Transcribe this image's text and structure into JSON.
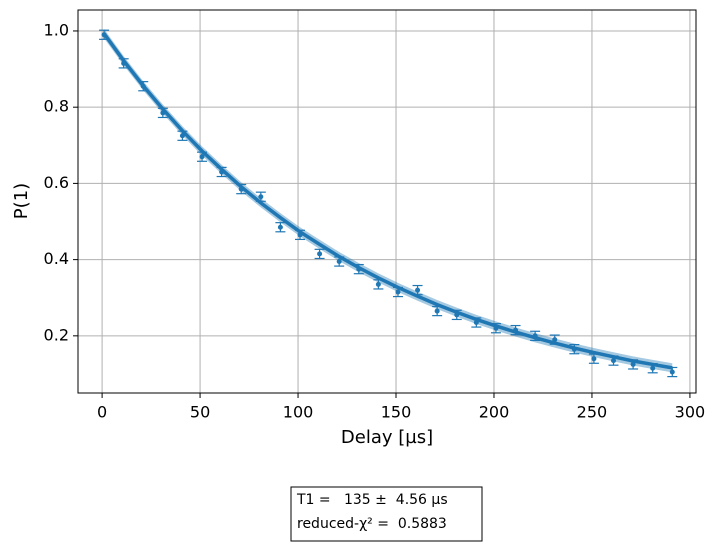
{
  "chart_data": {
    "type": "scatter",
    "xlabel": "Delay [µs]",
    "ylabel": "P(1)",
    "x": [
      1,
      11,
      21,
      31,
      41,
      51,
      61,
      71,
      81,
      91,
      101,
      111,
      121,
      131,
      141,
      151,
      161,
      171,
      181,
      191,
      201,
      211,
      221,
      231,
      241,
      251,
      261,
      271,
      281,
      291
    ],
    "values": [
      0.99,
      0.915,
      0.855,
      0.785,
      0.725,
      0.67,
      0.63,
      0.585,
      0.565,
      0.485,
      0.465,
      0.415,
      0.395,
      0.375,
      0.335,
      0.315,
      0.32,
      0.265,
      0.255,
      0.235,
      0.22,
      0.215,
      0.2,
      0.19,
      0.165,
      0.14,
      0.135,
      0.125,
      0.115,
      0.105
    ],
    "errors": [
      0.012,
      0.012,
      0.012,
      0.012,
      0.012,
      0.012,
      0.012,
      0.012,
      0.012,
      0.012,
      0.012,
      0.012,
      0.012,
      0.012,
      0.012,
      0.012,
      0.012,
      0.012,
      0.012,
      0.012,
      0.012,
      0.012,
      0.012,
      0.012,
      0.012,
      0.012,
      0.012,
      0.012,
      0.012,
      0.012
    ],
    "color": "#1f77b4",
    "fit": {
      "x": [
        1,
        11,
        21,
        31,
        41,
        51,
        61,
        71,
        81,
        91,
        101,
        111,
        121,
        131,
        141,
        151,
        161,
        171,
        181,
        191,
        201,
        211,
        221,
        231,
        241,
        251,
        261,
        271,
        281,
        291
      ],
      "values": [
        0.993,
        0.922,
        0.856,
        0.795,
        0.738,
        0.685,
        0.637,
        0.591,
        0.549,
        0.51,
        0.473,
        0.44,
        0.408,
        0.379,
        0.352,
        0.327,
        0.304,
        0.282,
        0.262,
        0.243,
        0.226,
        0.21,
        0.195,
        0.181,
        0.168,
        0.156,
        0.145,
        0.134,
        0.125,
        0.116
      ],
      "lower": [
        0.981,
        0.91,
        0.844,
        0.783,
        0.726,
        0.673,
        0.625,
        0.579,
        0.537,
        0.498,
        0.461,
        0.428,
        0.396,
        0.367,
        0.34,
        0.315,
        0.292,
        0.27,
        0.25,
        0.231,
        0.214,
        0.198,
        0.183,
        0.169,
        0.156,
        0.144,
        0.133,
        0.122,
        0.113,
        0.104
      ],
      "upper": [
        1.005,
        0.934,
        0.868,
        0.807,
        0.75,
        0.697,
        0.649,
        0.603,
        0.561,
        0.522,
        0.485,
        0.452,
        0.42,
        0.391,
        0.364,
        0.339,
        0.316,
        0.294,
        0.274,
        0.255,
        0.238,
        0.222,
        0.207,
        0.193,
        0.18,
        0.168,
        0.157,
        0.146,
        0.137,
        0.128
      ]
    },
    "xlim": [
      -12.3,
      303.1
    ],
    "ylim": [
      0.05,
      1.055
    ],
    "xticks": [
      0,
      50,
      100,
      150,
      200,
      250,
      300
    ],
    "yticks": [
      0.2,
      0.4,
      0.6,
      0.8,
      {
        "value": 1,
        "label": "1.0"
      }
    ],
    "grid": true,
    "annotation": [
      "T1 =   135 ±  4.56 µs",
      "reduced-χ² =  0.5883"
    ]
  }
}
